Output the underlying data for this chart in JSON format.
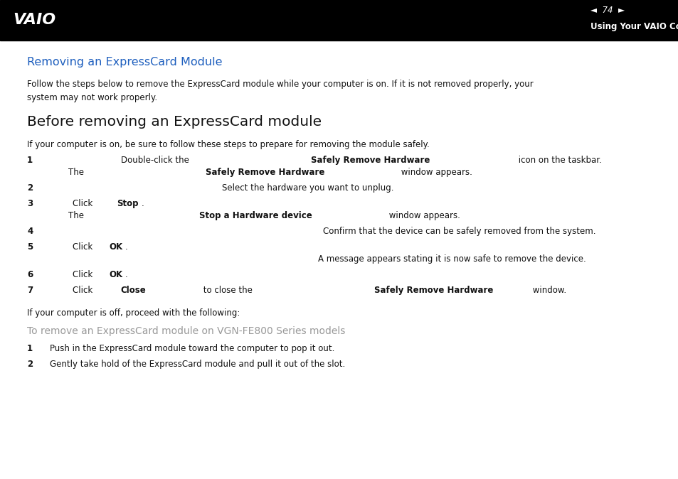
{
  "bg_color": "#ffffff",
  "header_bg": "#000000",
  "header_text_color": "#ffffff",
  "title_color": "#1e5fbe",
  "title_text": "Removing an ExpressCard Module",
  "title_fontsize": 11.5,
  "intro_text": "Follow the steps below to remove the ExpressCard module while your computer is on. If it is not removed properly, your\nsystem may not work properly.",
  "section_heading": "Before removing an ExpressCard module",
  "section_heading_fontsize": 14.5,
  "section_intro": "If your computer is on, be sure to follow these steps to prepare for removing the module safely.",
  "offline_text": "If your computer is off, proceed with the following:",
  "sub_heading": "To remove an ExpressCard module on VGN-FE800 Series models",
  "sub_heading_color": "#999999",
  "sub_heading_fontsize": 10.0,
  "body_fontsize": 8.5,
  "header_subtitle": "Using Your VAIO Computer",
  "header_page_num": "74"
}
